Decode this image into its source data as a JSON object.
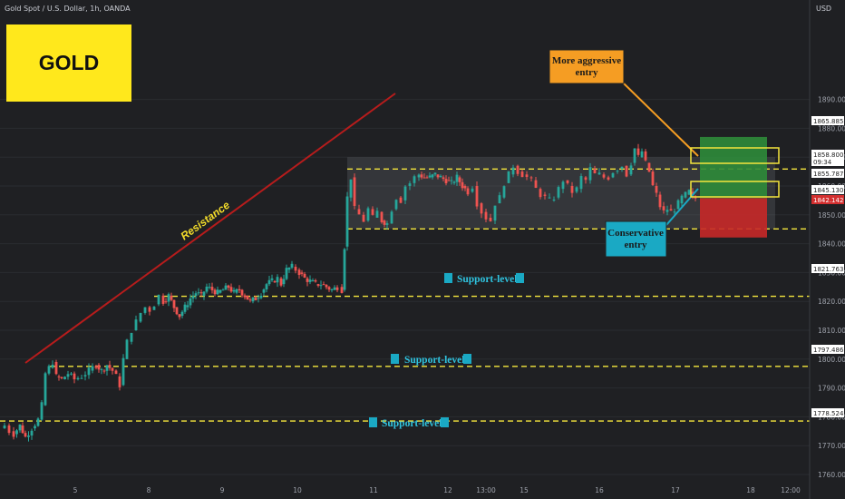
{
  "header": {
    "symbol_title": "Gold Spot / U.S. Dollar, 1h, OANDA",
    "currency": "USD"
  },
  "logo": {
    "label": "GOLD",
    "color": "#ffe81c"
  },
  "colors": {
    "bull": "#26a69a",
    "bear": "#ef5350",
    "support": "#f5e63d",
    "resistance": "#b71c1c",
    "tp_zone": "#2e8b3a",
    "sl_zone": "#c62828",
    "range_box": "#5d6068"
  },
  "annotations": {
    "resistance_label": "Resistance",
    "support_labels": [
      "Support-level",
      "Support-level",
      "Support-level"
    ],
    "aggressive_entry": {
      "line1": "More aggressive",
      "line2": "entry",
      "color": "#f59d23"
    },
    "conservative_entry": {
      "line1": "Conservative",
      "line2": "entry",
      "color": "#1aa9c4"
    }
  },
  "price_tags": [
    {
      "value": "1865.885",
      "bg": "#ffffff",
      "fg": "#222222"
    },
    {
      "value": "1858.800",
      "bg": "#ffffff",
      "fg": "#222222"
    },
    {
      "value": "09:34",
      "bg": "#ffffff",
      "fg": "#222222"
    },
    {
      "value": "1855.787",
      "bg": "#ffffff",
      "fg": "#222222"
    },
    {
      "value": "1845.130",
      "bg": "#ffffff",
      "fg": "#222222"
    },
    {
      "value": "1842.142",
      "bg": "#d32f2f",
      "fg": "#ffffff"
    },
    {
      "value": "1821.763",
      "bg": "#ffffff",
      "fg": "#222222"
    },
    {
      "value": "1797.486",
      "bg": "#ffffff",
      "fg": "#222222"
    },
    {
      "value": "1778.524",
      "bg": "#ffffff",
      "fg": "#222222"
    }
  ],
  "chart_data": {
    "type": "candlestick",
    "title": "Gold Spot / U.S. Dollar, 1h, OANDA",
    "ylim": [
      1756,
      1906
    ],
    "y_ticks": [
      1760,
      1770,
      1780,
      1790,
      1800,
      1810,
      1820,
      1830,
      1840,
      1850,
      1860,
      1870,
      1880,
      1890
    ],
    "x_ticks": [
      "5",
      "8",
      "9",
      "10",
      "11",
      "12",
      "13:00",
      "15",
      "16",
      "17",
      "18",
      "12:00"
    ],
    "horizontal_levels": [
      {
        "name": "resistance-range-top",
        "value": 1865.885
      },
      {
        "name": "range-bottom",
        "value": 1845.13
      },
      {
        "name": "support-1",
        "value": 1821.763
      },
      {
        "name": "support-2",
        "value": 1797.486
      },
      {
        "name": "support-3",
        "value": 1778.524
      }
    ],
    "current_price": 1855.787,
    "position": {
      "entry": 1855.787,
      "target": 1877,
      "stop": 1842.142
    },
    "price_path": [
      [
        0,
        1776
      ],
      [
        5,
        1777
      ],
      [
        10,
        1775
      ],
      [
        15,
        1774
      ],
      [
        22,
        1777
      ],
      [
        28,
        1773
      ],
      [
        35,
        1776
      ],
      [
        42,
        1779
      ],
      [
        46,
        1784
      ],
      [
        50,
        1795
      ],
      [
        54,
        1797
      ],
      [
        58,
        1799
      ],
      [
        62,
        1794
      ],
      [
        68,
        1793
      ],
      [
        75,
        1795
      ],
      [
        82,
        1793
      ],
      [
        90,
        1794
      ],
      [
        98,
        1796
      ],
      [
        106,
        1798
      ],
      [
        112,
        1796
      ],
      [
        118,
        1798
      ],
      [
        124,
        1796
      ],
      [
        128,
        1794
      ],
      [
        132,
        1791
      ],
      [
        136,
        1800
      ],
      [
        140,
        1806
      ],
      [
        145,
        1810
      ],
      [
        150,
        1813
      ],
      [
        155,
        1816
      ],
      [
        160,
        1818
      ],
      [
        165,
        1817
      ],
      [
        170,
        1819
      ],
      [
        175,
        1822
      ],
      [
        180,
        1820
      ],
      [
        186,
        1822
      ],
      [
        192,
        1818
      ],
      [
        198,
        1815
      ],
      [
        204,
        1818
      ],
      [
        210,
        1821
      ],
      [
        216,
        1823
      ],
      [
        222,
        1822
      ],
      [
        228,
        1825
      ],
      [
        234,
        1824
      ],
      [
        240,
        1823
      ],
      [
        246,
        1824
      ],
      [
        252,
        1825
      ],
      [
        258,
        1823
      ],
      [
        264,
        1824
      ],
      [
        270,
        1822
      ],
      [
        276,
        1820
      ],
      [
        282,
        1821
      ],
      [
        288,
        1823
      ],
      [
        294,
        1826
      ],
      [
        300,
        1827
      ],
      [
        306,
        1828
      ],
      [
        310,
        1826
      ],
      [
        316,
        1831
      ],
      [
        322,
        1832
      ],
      [
        326,
        1831
      ],
      [
        330,
        1830
      ],
      [
        336,
        1828
      ],
      [
        342,
        1827
      ],
      [
        348,
        1826
      ],
      [
        354,
        1826
      ],
      [
        360,
        1825
      ],
      [
        366,
        1824
      ],
      [
        372,
        1825
      ],
      [
        377,
        1824
      ],
      [
        380,
        1839
      ],
      [
        383,
        1856
      ],
      [
        387,
        1863
      ],
      [
        391,
        1852
      ],
      [
        396,
        1850
      ],
      [
        401,
        1848
      ],
      [
        406,
        1852
      ],
      [
        411,
        1849
      ],
      [
        416,
        1851
      ],
      [
        421,
        1848
      ],
      [
        427,
        1847
      ],
      [
        432,
        1852
      ],
      [
        437,
        1856
      ],
      [
        442,
        1855
      ],
      [
        447,
        1860
      ],
      [
        452,
        1861
      ],
      [
        457,
        1863
      ],
      [
        462,
        1864
      ],
      [
        468,
        1863
      ],
      [
        474,
        1863
      ],
      [
        480,
        1864
      ],
      [
        486,
        1863
      ],
      [
        492,
        1862
      ],
      [
        498,
        1861
      ],
      [
        504,
        1863
      ],
      [
        510,
        1860
      ],
      [
        516,
        1858
      ],
      [
        521,
        1860
      ],
      [
        526,
        1854
      ],
      [
        531,
        1851
      ],
      [
        536,
        1849
      ],
      [
        541,
        1848
      ],
      [
        546,
        1854
      ],
      [
        551,
        1856
      ],
      [
        556,
        1861
      ],
      [
        561,
        1864
      ],
      [
        566,
        1867
      ],
      [
        571,
        1865
      ],
      [
        576,
        1864
      ],
      [
        581,
        1863
      ],
      [
        586,
        1862
      ],
      [
        591,
        1859
      ],
      [
        596,
        1857
      ],
      [
        601,
        1856
      ],
      [
        606,
        1855
      ],
      [
        611,
        1856
      ],
      [
        616,
        1859
      ],
      [
        621,
        1862
      ],
      [
        626,
        1860
      ],
      [
        631,
        1858
      ],
      [
        636,
        1859
      ],
      [
        641,
        1863
      ],
      [
        646,
        1862
      ],
      [
        651,
        1866
      ],
      [
        656,
        1864
      ],
      [
        661,
        1864
      ],
      [
        666,
        1863
      ],
      [
        671,
        1863
      ],
      [
        676,
        1865
      ],
      [
        681,
        1866
      ],
      [
        686,
        1867
      ],
      [
        691,
        1864
      ],
      [
        696,
        1868
      ],
      [
        700,
        1873
      ],
      [
        704,
        1870
      ],
      [
        708,
        1872
      ],
      [
        712,
        1868
      ],
      [
        716,
        1865
      ],
      [
        720,
        1860
      ],
      [
        724,
        1857
      ],
      [
        728,
        1853
      ],
      [
        732,
        1851
      ],
      [
        736,
        1852
      ],
      [
        740,
        1851
      ],
      [
        744,
        1852
      ],
      [
        748,
        1854
      ],
      [
        752,
        1856
      ],
      [
        756,
        1857
      ],
      [
        760,
        1858
      ],
      [
        764,
        1856
      ],
      [
        767,
        1855.787
      ]
    ]
  }
}
